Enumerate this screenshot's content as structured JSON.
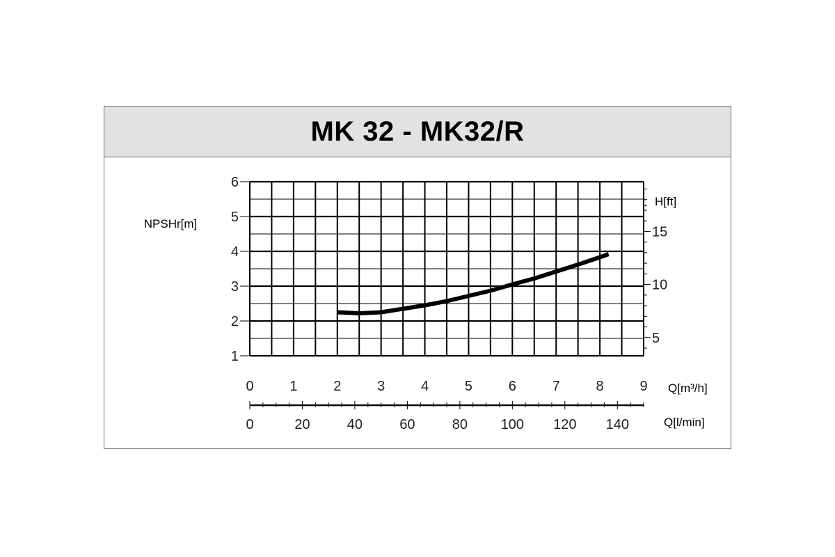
{
  "chart_data": {
    "type": "line",
    "title": "MK 32 - MK32/R",
    "ylabel": "NPSHr[m]",
    "ylim": [
      1,
      6
    ],
    "yticks": [
      "1",
      "2",
      "3",
      "4",
      "5",
      "6"
    ],
    "xlim": [
      0,
      9
    ],
    "x_primary_label": "Q[m³/h]",
    "x_primary_ticks": [
      "0",
      "1",
      "2",
      "3",
      "4",
      "5",
      "6",
      "7",
      "8",
      "9"
    ],
    "x_secondary_label": "Q[l/min]",
    "x_secondary_range": [
      0,
      150
    ],
    "x_secondary_ticks": [
      "0",
      "20",
      "40",
      "60",
      "80",
      "100",
      "120",
      "140"
    ],
    "y_secondary_label": "H[ft]",
    "y_secondary_ticks": [
      "5",
      "10",
      "15"
    ],
    "grid": true,
    "series": [
      {
        "x": [
          2.0,
          2.5,
          3.0,
          3.5,
          4.0,
          4.5,
          5.0,
          5.5,
          6.0,
          6.5,
          7.0,
          7.5,
          8.0,
          8.2
        ],
        "y": [
          2.25,
          2.22,
          2.25,
          2.35,
          2.45,
          2.57,
          2.72,
          2.87,
          3.05,
          3.22,
          3.42,
          3.62,
          3.83,
          3.92
        ]
      }
    ],
    "line_color": "#000000"
  }
}
